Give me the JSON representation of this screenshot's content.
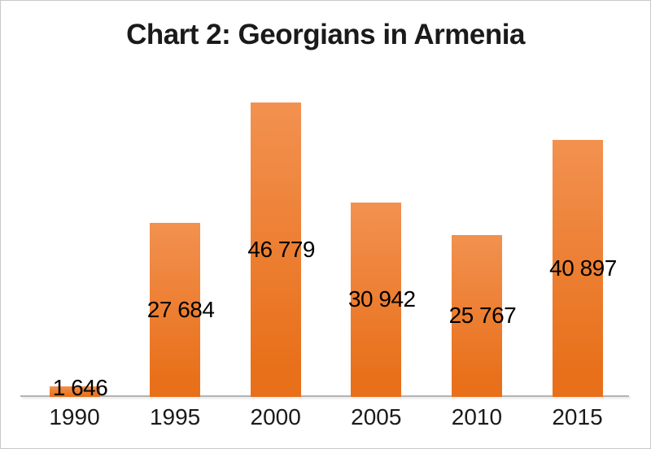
{
  "chart_data": {
    "type": "bar",
    "title": "Chart 2: Georgians in Armenia",
    "categories": [
      "1990",
      "1995",
      "2000",
      "2005",
      "2010",
      "2015"
    ],
    "values": [
      1646,
      27684,
      46779,
      30942,
      25767,
      40897
    ],
    "data_labels": [
      "1 646",
      "27 684",
      "46 779",
      "30 942",
      "25 767",
      "40 897"
    ],
    "xlabel": "",
    "ylabel": "",
    "ylim": [
      0,
      50000
    ],
    "grid": false,
    "legend": "none",
    "data_label_position": "inside-center",
    "colors": {
      "bar_gradient_top": "#F29150",
      "bar_gradient_bottom": "#E8701A",
      "axis_line": "#B3B3B3",
      "title_text": "#1A1A1A",
      "label_text": "#000000",
      "background": "#FFFFFF",
      "frame_border": "#C9C9C9"
    }
  }
}
